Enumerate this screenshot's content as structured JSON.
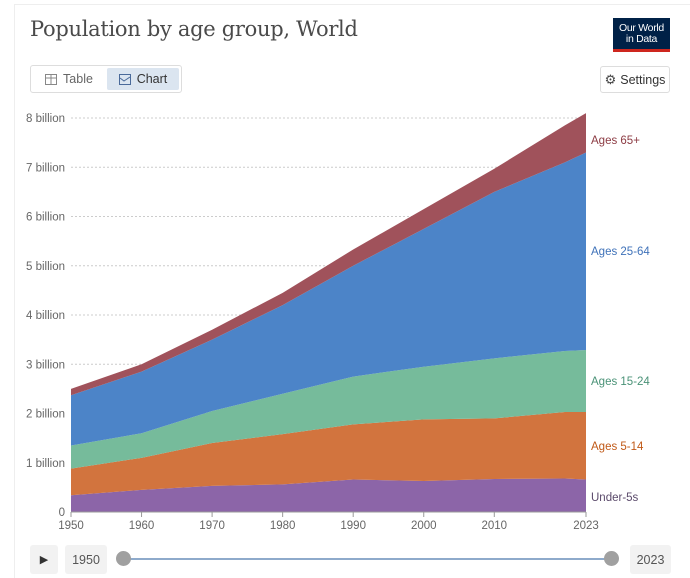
{
  "header": {
    "title": "Population by age group, World",
    "logo_line1": "Our World",
    "logo_line2": "in Data"
  },
  "tabs": [
    {
      "label": "Table",
      "icon": "table-icon"
    },
    {
      "label": "Chart",
      "icon": "chart-icon",
      "active": true
    }
  ],
  "settings_label": "Settings",
  "timeline": {
    "start": "1950",
    "end": "2023",
    "play_icon": "play-icon"
  },
  "chart_data": {
    "type": "area",
    "title": "Population by age group, World",
    "stacked": true,
    "x": [
      1950,
      1960,
      1970,
      1980,
      1990,
      2000,
      2010,
      2020,
      2023
    ],
    "xticks": [
      "1950",
      "1960",
      "1970",
      "1980",
      "1990",
      "2000",
      "2010",
      "2023"
    ],
    "xtick_values": [
      1950,
      1960,
      1970,
      1980,
      1990,
      2000,
      2010,
      2023
    ],
    "yticks": [
      "0",
      "1 billion",
      "2 billion",
      "3 billion",
      "4 billion",
      "5 billion",
      "6 billion",
      "7 billion",
      "8 billion"
    ],
    "ylim": [
      0,
      8
    ],
    "yunit": "billion",
    "grid": true,
    "legend_placement": "right-inline",
    "series": [
      {
        "name": "Under-5s",
        "color": "#8c65a8",
        "label_color": "#5b4a6b",
        "values": [
          0.34,
          0.45,
          0.53,
          0.56,
          0.66,
          0.63,
          0.67,
          0.68,
          0.66
        ]
      },
      {
        "name": "Ages 5-14",
        "color": "#d2743e",
        "label_color": "#c05917",
        "values": [
          0.54,
          0.65,
          0.87,
          1.02,
          1.12,
          1.25,
          1.23,
          1.35,
          1.37
        ]
      },
      {
        "name": "Ages 15-24",
        "color": "#76bb9b",
        "label_color": "#4a9277",
        "values": [
          0.47,
          0.5,
          0.65,
          0.82,
          0.97,
          1.07,
          1.22,
          1.24,
          1.26
        ]
      },
      {
        "name": "Ages 25-64",
        "color": "#4c84c8",
        "label_color": "#3f72b9",
        "values": [
          1.02,
          1.25,
          1.45,
          1.8,
          2.25,
          2.8,
          3.38,
          3.83,
          4.01
        ]
      },
      {
        "name": "Ages 65+",
        "color": "#a0525b",
        "label_color": "#8c3b43",
        "values": [
          0.13,
          0.15,
          0.2,
          0.25,
          0.33,
          0.4,
          0.47,
          0.75,
          0.8
        ]
      }
    ]
  }
}
